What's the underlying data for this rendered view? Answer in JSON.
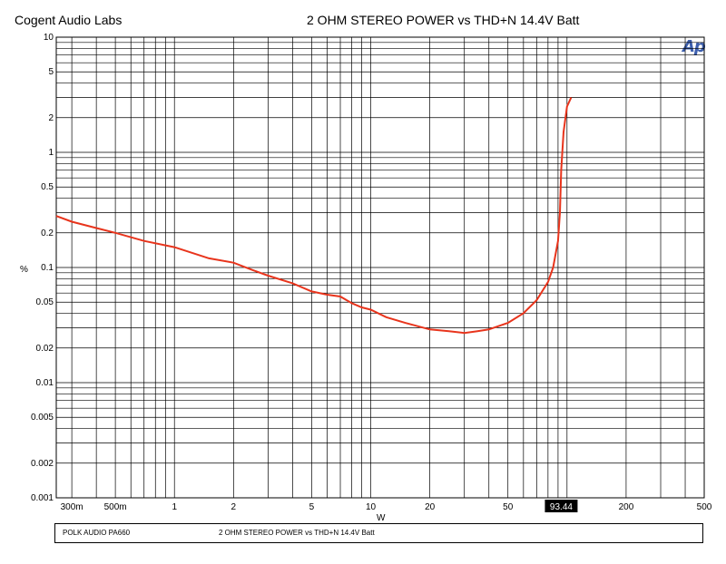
{
  "header": {
    "brand": "Cogent Audio Labs",
    "title": "2 OHM STEREO POWER vs THD+N    14.4V Batt"
  },
  "footer": {
    "left": "POLK AUDIO PA660",
    "middle": "2 OHM STEREO POWER  vs THD+N      14.4V Batt"
  },
  "logo_text": "Ap",
  "chart_data": {
    "type": "line",
    "title": "2 OHM STEREO POWER vs THD+N    14.4V Batt",
    "xlabel": "W",
    "ylabel": "%",
    "xscale": "log",
    "yscale": "log",
    "xlim": [
      0.25,
      500
    ],
    "ylim": [
      0.001,
      10
    ],
    "grid": true,
    "line_color": "#e8341c",
    "x_ticks": [
      {
        "v": 0.3,
        "label": "300m"
      },
      {
        "v": 0.5,
        "label": "500m"
      },
      {
        "v": 1,
        "label": "1"
      },
      {
        "v": 2,
        "label": "2"
      },
      {
        "v": 5,
        "label": "5"
      },
      {
        "v": 10,
        "label": "10"
      },
      {
        "v": 20,
        "label": "20"
      },
      {
        "v": 50,
        "label": "50"
      },
      {
        "v": 200,
        "label": "200"
      },
      {
        "v": 500,
        "label": "500"
      }
    ],
    "y_ticks": [
      {
        "v": 10,
        "label": "10"
      },
      {
        "v": 5,
        "label": "5"
      },
      {
        "v": 2,
        "label": "2"
      },
      {
        "v": 1,
        "label": "1"
      },
      {
        "v": 0.5,
        "label": "0.5"
      },
      {
        "v": 0.2,
        "label": "0.2"
      },
      {
        "v": 0.1,
        "label": "0.1"
      },
      {
        "v": 0.05,
        "label": "0.05"
      },
      {
        "v": 0.02,
        "label": "0.02"
      },
      {
        "v": 0.01,
        "label": "0.01"
      },
      {
        "v": 0.005,
        "label": "0.005"
      },
      {
        "v": 0.002,
        "label": "0.002"
      },
      {
        "v": 0.001,
        "label": "0.001"
      }
    ],
    "marker": {
      "x": 93.44,
      "label": "93.44"
    },
    "series": [
      {
        "x": [
          0.25,
          0.3,
          0.4,
          0.5,
          0.7,
          1,
          1.5,
          2,
          2.5,
          3,
          4,
          5,
          6,
          7,
          8,
          9,
          10,
          12,
          15,
          20,
          25,
          30,
          35,
          40,
          50,
          60,
          70,
          80,
          85,
          90,
          92,
          93.44,
          96,
          100,
          105
        ],
        "y": [
          0.28,
          0.25,
          0.22,
          0.2,
          0.17,
          0.15,
          0.12,
          0.11,
          0.095,
          0.085,
          0.073,
          0.062,
          0.058,
          0.056,
          0.049,
          0.045,
          0.043,
          0.037,
          0.033,
          0.029,
          0.028,
          0.027,
          0.028,
          0.029,
          0.033,
          0.04,
          0.052,
          0.075,
          0.1,
          0.17,
          0.3,
          0.7,
          1.5,
          2.5,
          3.0
        ]
      }
    ]
  }
}
